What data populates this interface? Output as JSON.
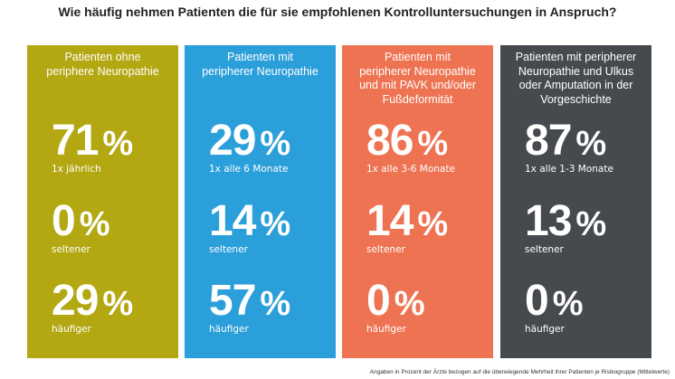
{
  "title": "Wie häufig nehmen Patienten die für sie empfohlenen Kontrolluntersuchungen in Anspruch?",
  "footnote": "Angaben in Prozent der Ärzte bezogen auf die überwiegende Mehrheit ihrer Patienten je Risikogruppe (Mittelwerte)",
  "percent_sign": "%",
  "colors": {
    "panel_1": "#b3a812",
    "panel_2": "#2b9fd9",
    "panel_3": "#ee7352",
    "panel_4": "#464a4e",
    "text": "#ffffff"
  },
  "chart_data": {
    "type": "table",
    "title": "Wie häufig nehmen Patienten die für sie empfohlenen Kontrolluntersuchungen in Anspruch?",
    "unit": "%",
    "groups": [
      {
        "header_lines": [
          "Patienten ohne",
          "periphere Neuropathie"
        ],
        "stats": [
          {
            "value": 71,
            "label": "1x jährlich"
          },
          {
            "value": 0,
            "label": "seltener"
          },
          {
            "value": 29,
            "label": "häufiger"
          }
        ]
      },
      {
        "header_lines": [
          "Patienten mit",
          "peripherer Neuropathie"
        ],
        "stats": [
          {
            "value": 29,
            "label": "1x alle 6 Monate"
          },
          {
            "value": 14,
            "label": "seltener"
          },
          {
            "value": 57,
            "label": "häufiger"
          }
        ]
      },
      {
        "header_lines": [
          "Patienten mit",
          "peripherer Neuropathie",
          "und mit PAVK und/oder",
          "Fußdeformität"
        ],
        "stats": [
          {
            "value": 86,
            "label": "1x alle 3-6 Monate"
          },
          {
            "value": 14,
            "label": "seltener"
          },
          {
            "value": 0,
            "label": "häufiger"
          }
        ]
      },
      {
        "header_lines": [
          "Patienten mit peripherer",
          "Neuropathie und Ulkus",
          "oder Amputation in der",
          "Vorgeschichte"
        ],
        "stats": [
          {
            "value": 87,
            "label": "1x alle 1-3 Monate"
          },
          {
            "value": 13,
            "label": "seltener"
          },
          {
            "value": 0,
            "label": "häufiger"
          }
        ]
      }
    ]
  }
}
